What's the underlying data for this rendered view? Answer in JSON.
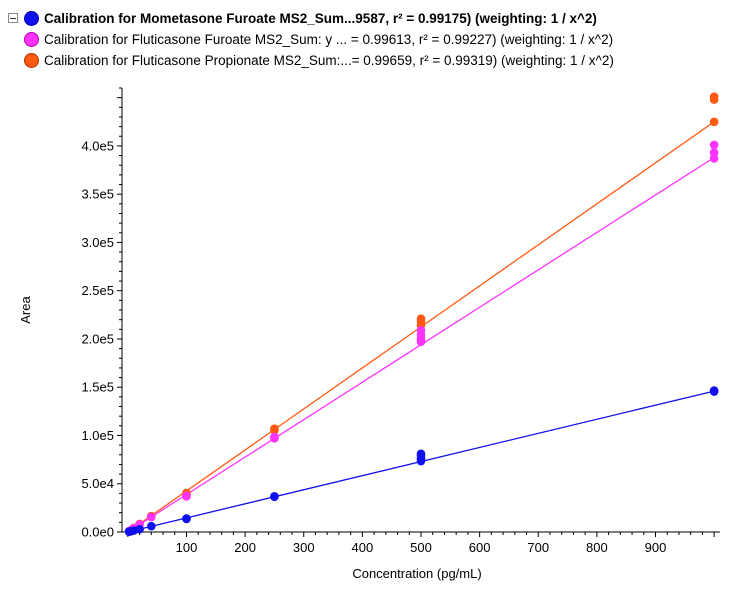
{
  "legend": {
    "items": [
      {
        "label": "Calibration for Mometasone Furoate MS2_Sum...9587, r² = 0.99175)  (weighting: 1 / x^2)",
        "color": "#1010ee",
        "border": "#0000a8",
        "active": true
      },
      {
        "label": "Calibration for Fluticasone Furoate MS2_Sum: y ... = 0.99613, r² = 0.99227)  (weighting: 1 / x^2)",
        "color": "#ff33ff",
        "border": "#b000b0",
        "active": false
      },
      {
        "label": "Calibration for Fluticasone Propionate MS2_Sum:...= 0.99659, r² = 0.99319)  (weighting: 1 / x^2)",
        "color": "#ff5a10",
        "border": "#b03000",
        "active": false
      }
    ]
  },
  "chart_data": {
    "type": "scatter",
    "xlabel": "Concentration (pg/mL)",
    "ylabel": "Area",
    "xlim": [
      -10,
      1010
    ],
    "ylim": [
      0,
      460000
    ],
    "xticks": [
      100,
      200,
      300,
      400,
      500,
      600,
      700,
      800,
      900
    ],
    "xtick_labels": [
      "100",
      "200",
      "300",
      "400",
      "500",
      "600",
      "700",
      "800",
      "900"
    ],
    "yticks": [
      0,
      50000,
      100000,
      150000,
      200000,
      250000,
      300000,
      350000,
      400000
    ],
    "ytick_labels": [
      "0.0e0",
      "5.0e4",
      "1.0e5",
      "1.5e5",
      "2.0e5",
      "2.5e5",
      "3.0e5",
      "3.5e5",
      "4.0e5"
    ],
    "series": [
      {
        "color": "#ff5a10",
        "fit": {
          "slope": 425,
          "intercept": 0
        },
        "points": [
          [
            2,
            700
          ],
          [
            5,
            1900
          ],
          [
            10,
            4200
          ],
          [
            20,
            8400
          ],
          [
            40,
            16500
          ],
          [
            100,
            40500
          ],
          [
            100,
            39000
          ],
          [
            250,
            107000
          ],
          [
            250,
            105500
          ],
          [
            500,
            221000
          ],
          [
            500,
            218000
          ],
          [
            500,
            214000
          ],
          [
            1000,
            451000
          ],
          [
            1000,
            448000
          ],
          [
            1000,
            425000
          ]
        ]
      },
      {
        "color": "#ff33ff",
        "fit": {
          "slope": 388,
          "intercept": 0
        },
        "points": [
          [
            2,
            700
          ],
          [
            5,
            1800
          ],
          [
            10,
            3900
          ],
          [
            20,
            7800
          ],
          [
            40,
            15500
          ],
          [
            100,
            37500
          ],
          [
            100,
            36800
          ],
          [
            250,
            98500
          ],
          [
            250,
            97000
          ],
          [
            500,
            209000
          ],
          [
            500,
            204000
          ],
          [
            500,
            200000
          ],
          [
            500,
            197000
          ],
          [
            1000,
            401000
          ],
          [
            1000,
            393000
          ],
          [
            1000,
            387000
          ]
        ]
      },
      {
        "color": "#1010ee",
        "fit": {
          "slope": 146,
          "intercept": 0
        },
        "points": [
          [
            2,
            300
          ],
          [
            5,
            700
          ],
          [
            10,
            1500
          ],
          [
            20,
            2900
          ],
          [
            40,
            6000
          ],
          [
            100,
            14000
          ],
          [
            100,
            13500
          ],
          [
            250,
            37000
          ],
          [
            250,
            36500
          ],
          [
            500,
            81000
          ],
          [
            500,
            79000
          ],
          [
            500,
            76000
          ],
          [
            500,
            73500
          ],
          [
            1000,
            146500
          ],
          [
            1000,
            145500
          ]
        ]
      }
    ]
  }
}
